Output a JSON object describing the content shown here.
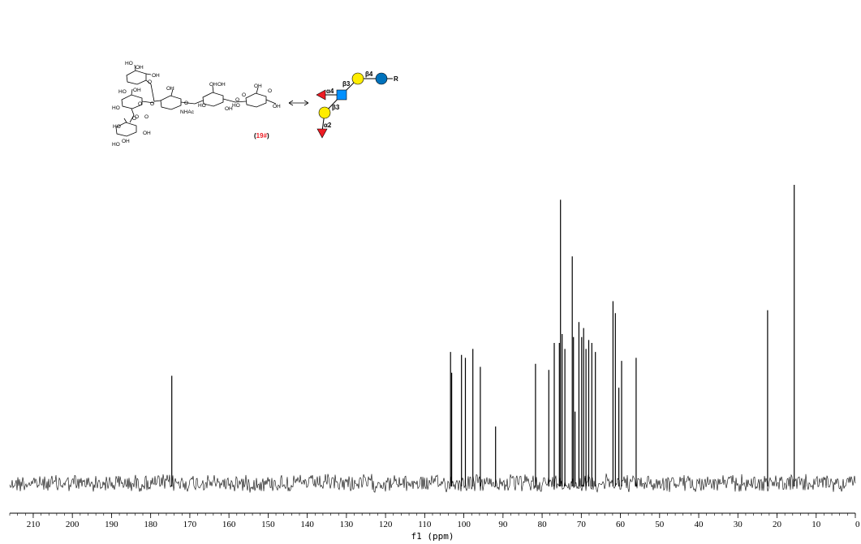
{
  "chart_data": {
    "type": "line",
    "title": "",
    "xlabel": "f1 (ppm)",
    "ylabel": "",
    "xlim": [
      216,
      0
    ],
    "x_reversed": true,
    "grid": false,
    "x_ticks": [
      210,
      200,
      190,
      180,
      170,
      160,
      150,
      140,
      130,
      120,
      110,
      100,
      90,
      80,
      70,
      60,
      50,
      40,
      30,
      20,
      10,
      0
    ],
    "x_tick_labels": [
      "210",
      "200",
      "190",
      "180",
      "170",
      "160",
      "150",
      "140",
      "130",
      "120",
      "110",
      "100",
      "90",
      "80",
      "70",
      "60",
      "50",
      "40",
      "30",
      "20",
      "10",
      "0"
    ],
    "y_units": "relative intensity (tallest peak = 1.0)",
    "peaks": [
      {
        "ppm": 174.6,
        "intensity": 0.36
      },
      {
        "ppm": 103.4,
        "intensity": 0.44
      },
      {
        "ppm": 103.1,
        "intensity": 0.37
      },
      {
        "ppm": 100.6,
        "intensity": 0.43
      },
      {
        "ppm": 99.6,
        "intensity": 0.42
      },
      {
        "ppm": 97.7,
        "intensity": 0.45
      },
      {
        "ppm": 95.8,
        "intensity": 0.39
      },
      {
        "ppm": 91.9,
        "intensity": 0.19
      },
      {
        "ppm": 81.7,
        "intensity": 0.4
      },
      {
        "ppm": 78.3,
        "intensity": 0.38
      },
      {
        "ppm": 76.9,
        "intensity": 0.47
      },
      {
        "ppm": 75.6,
        "intensity": 0.47
      },
      {
        "ppm": 75.3,
        "intensity": 0.95
      },
      {
        "ppm": 74.9,
        "intensity": 0.5
      },
      {
        "ppm": 74.2,
        "intensity": 0.45
      },
      {
        "ppm": 72.3,
        "intensity": 0.76
      },
      {
        "ppm": 72.0,
        "intensity": 0.49
      },
      {
        "ppm": 71.6,
        "intensity": 0.24
      },
      {
        "ppm": 70.6,
        "intensity": 0.54
      },
      {
        "ppm": 69.9,
        "intensity": 0.49
      },
      {
        "ppm": 69.4,
        "intensity": 0.52
      },
      {
        "ppm": 68.8,
        "intensity": 0.45
      },
      {
        "ppm": 68.1,
        "intensity": 0.48
      },
      {
        "ppm": 67.3,
        "intensity": 0.47
      },
      {
        "ppm": 66.4,
        "intensity": 0.44
      },
      {
        "ppm": 61.9,
        "intensity": 0.61
      },
      {
        "ppm": 61.3,
        "intensity": 0.57
      },
      {
        "ppm": 60.4,
        "intensity": 0.32
      },
      {
        "ppm": 59.7,
        "intensity": 0.41
      },
      {
        "ppm": 56.0,
        "intensity": 0.42
      },
      {
        "ppm": 22.4,
        "intensity": 0.58
      },
      {
        "ppm": 15.6,
        "intensity": 1.0
      }
    ],
    "noise_amplitude": 0.025
  },
  "structure": {
    "compound_label_open": "(",
    "compound_label_number": "19#",
    "compound_label_close": ")",
    "substituent_labels": [
      "HO",
      "OH",
      "OH",
      "O",
      "HO",
      "OH",
      "O",
      "OH",
      "HO",
      "O",
      "O",
      "O",
      "NHAc",
      "OH",
      "HO",
      "O",
      "OH",
      "HO",
      "O",
      "OH",
      "OH",
      "O",
      "OH",
      "O",
      "HO",
      "OH",
      "HO",
      "OH",
      "O"
    ],
    "glycan_linkages": [
      "α4",
      "β3",
      "β4",
      "β3",
      "α2"
    ],
    "aglycone_label": "R",
    "colors": {
      "galactose": "#ffed00",
      "glucose": "#0072bc",
      "glcnac": "#0090ff",
      "fucose": "#ed1c24",
      "compound_label": "#ed1c24"
    }
  }
}
